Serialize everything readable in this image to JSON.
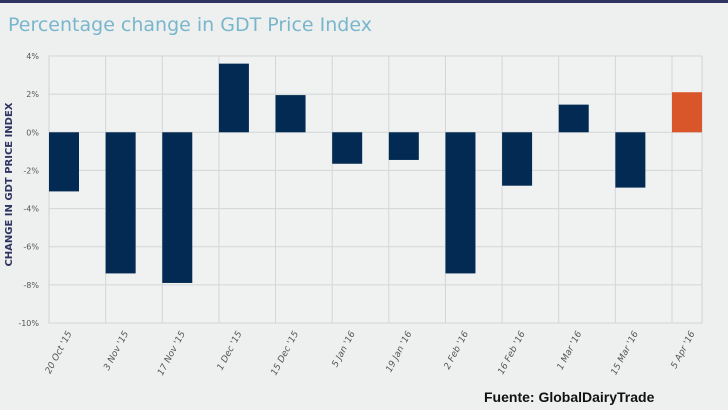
{
  "chart_data": {
    "type": "bar",
    "title": "Percentage change in GDT Price Index",
    "xlabel": "",
    "ylabel": "CHANGE IN GDT PRICE INDEX",
    "ylim": [
      -10,
      4
    ],
    "yticks": [
      4,
      2,
      0,
      -2,
      -4,
      -6,
      -8,
      -10
    ],
    "ytick_labels": [
      "4%",
      "2%",
      "0%",
      "-2%",
      "-4%",
      "-6%",
      "-8%",
      "-10%"
    ],
    "grid": true,
    "categories": [
      "20 Oct '15",
      "3 Nov '15",
      "17 Nov '15",
      "1 Dec '15",
      "15 Dec '15",
      "5 Jan '16",
      "19 Jan '16",
      "2 Feb '16",
      "16 Feb '16",
      "1 Mar '16",
      "15 Mar '16",
      "5 Apr '16"
    ],
    "values": [
      -3.1,
      -7.4,
      -7.9,
      3.6,
      1.95,
      -1.65,
      -1.45,
      -7.4,
      -2.8,
      1.45,
      -2.9,
      2.1
    ],
    "colors": [
      "#022a52",
      "#022a52",
      "#022a52",
      "#022a52",
      "#022a52",
      "#022a52",
      "#022a52",
      "#022a52",
      "#022a52",
      "#022a52",
      "#022a52",
      "#d9552a"
    ],
    "source": "Fuente: GlobalDairyTrade"
  }
}
